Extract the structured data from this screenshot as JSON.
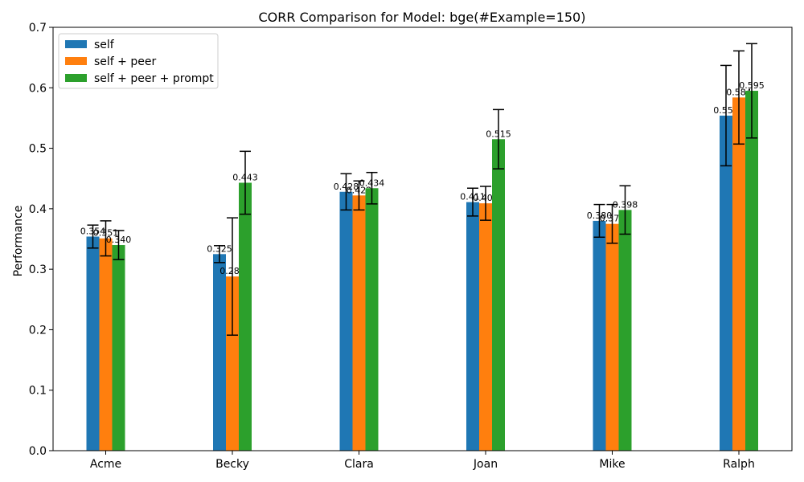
{
  "chart_data": {
    "type": "bar",
    "title": "CORR Comparison for Model: bge(#Example=150)",
    "xlabel": "",
    "ylabel": "Performance",
    "ylim": [
      0,
      0.7
    ],
    "yticks": [
      "0.0",
      "0.1",
      "0.2",
      "0.3",
      "0.4",
      "0.5",
      "0.6",
      "0.7"
    ],
    "categories": [
      "Acme",
      "Becky",
      "Clara",
      "Joan",
      "Mike",
      "Ralph"
    ],
    "legend_position": "top-left",
    "grid": false,
    "series": [
      {
        "name": "self",
        "color": "#1f77b4",
        "values": [
          0.354,
          0.325,
          0.428,
          0.411,
          0.38,
          0.554
        ],
        "labels": [
          "0.354",
          "0.325",
          "0.428",
          "0.411",
          "0.380",
          "0.554"
        ],
        "error": [
          0.019,
          0.014,
          0.03,
          0.023,
          0.027,
          0.083
        ]
      },
      {
        "name": "self + peer",
        "color": "#ff7f0e",
        "values": [
          0.351,
          0.288,
          0.422,
          0.409,
          0.375,
          0.584
        ],
        "labels": [
          "0.351",
          "0.288",
          "0.422",
          "0.409",
          "0.375",
          "0.584"
        ],
        "error": [
          0.029,
          0.097,
          0.024,
          0.028,
          0.032,
          0.077
        ]
      },
      {
        "name": "self + peer + prompt",
        "color": "#2ca02c",
        "values": [
          0.34,
          0.443,
          0.434,
          0.515,
          0.398,
          0.595
        ],
        "labels": [
          "0.340",
          "0.443",
          "0.434",
          "0.515",
          "0.398",
          "0.595"
        ],
        "error": [
          0.024,
          0.052,
          0.026,
          0.049,
          0.04,
          0.078
        ]
      }
    ]
  }
}
